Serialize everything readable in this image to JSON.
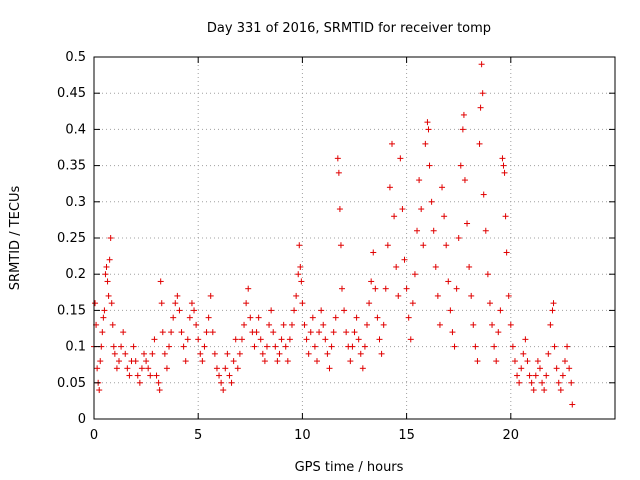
{
  "chart_data": {
    "type": "scatter",
    "title": "Day 331 of 2016, SRMTID for receiver tomp",
    "xlabel": "GPS time / hours",
    "ylabel": "SRMTID / TECUs",
    "xlim": [
      0,
      25
    ],
    "ylim": [
      0,
      0.5
    ],
    "xticks": [
      0,
      5,
      10,
      15,
      20
    ],
    "xtick_labels": [
      "0",
      "5",
      "10",
      "15",
      "20"
    ],
    "yticks": [
      0,
      0.05,
      0.1,
      0.15,
      0.2,
      0.25,
      0.3,
      0.35,
      0.4,
      0.45,
      0.5
    ],
    "ytick_labels": [
      "0",
      "0.05",
      "0.1",
      "0.15",
      "0.2",
      "0.25",
      "0.3",
      "0.35",
      "0.4",
      "0.45",
      "0.5"
    ],
    "grid": true,
    "marker": "+",
    "color": "#e00000",
    "series": [
      {
        "name": "SRMTID",
        "points": [
          [
            0.0,
            0.1
          ],
          [
            0.05,
            0.16
          ],
          [
            0.1,
            0.13
          ],
          [
            0.15,
            0.07
          ],
          [
            0.2,
            0.05
          ],
          [
            0.25,
            0.04
          ],
          [
            0.3,
            0.08
          ],
          [
            0.35,
            0.1
          ],
          [
            0.4,
            0.12
          ],
          [
            0.45,
            0.14
          ],
          [
            0.5,
            0.15
          ],
          [
            0.55,
            0.2
          ],
          [
            0.6,
            0.21
          ],
          [
            0.65,
            0.19
          ],
          [
            0.7,
            0.17
          ],
          [
            0.75,
            0.22
          ],
          [
            0.8,
            0.25
          ],
          [
            0.85,
            0.16
          ],
          [
            0.9,
            0.13
          ],
          [
            0.95,
            0.1
          ],
          [
            1.0,
            0.09
          ],
          [
            1.1,
            0.07
          ],
          [
            1.2,
            0.08
          ],
          [
            1.3,
            0.1
          ],
          [
            1.4,
            0.12
          ],
          [
            1.5,
            0.09
          ],
          [
            1.6,
            0.07
          ],
          [
            1.7,
            0.06
          ],
          [
            1.8,
            0.08
          ],
          [
            1.9,
            0.1
          ],
          [
            2.0,
            0.08
          ],
          [
            2.1,
            0.06
          ],
          [
            2.2,
            0.05
          ],
          [
            2.3,
            0.07
          ],
          [
            2.4,
            0.09
          ],
          [
            2.5,
            0.08
          ],
          [
            2.6,
            0.07
          ],
          [
            2.7,
            0.06
          ],
          [
            2.8,
            0.09
          ],
          [
            2.9,
            0.11
          ],
          [
            3.0,
            0.06
          ],
          [
            3.1,
            0.05
          ],
          [
            3.15,
            0.04
          ],
          [
            3.2,
            0.19
          ],
          [
            3.25,
            0.16
          ],
          [
            3.3,
            0.12
          ],
          [
            3.4,
            0.09
          ],
          [
            3.5,
            0.07
          ],
          [
            3.6,
            0.1
          ],
          [
            3.7,
            0.12
          ],
          [
            3.8,
            0.14
          ],
          [
            3.9,
            0.16
          ],
          [
            4.0,
            0.17
          ],
          [
            4.1,
            0.15
          ],
          [
            4.2,
            0.12
          ],
          [
            4.3,
            0.1
          ],
          [
            4.4,
            0.08
          ],
          [
            4.5,
            0.11
          ],
          [
            4.6,
            0.14
          ],
          [
            4.7,
            0.16
          ],
          [
            4.8,
            0.15
          ],
          [
            4.9,
            0.13
          ],
          [
            5.0,
            0.11
          ],
          [
            5.1,
            0.09
          ],
          [
            5.2,
            0.08
          ],
          [
            5.3,
            0.1
          ],
          [
            5.4,
            0.12
          ],
          [
            5.5,
            0.14
          ],
          [
            5.6,
            0.17
          ],
          [
            5.7,
            0.12
          ],
          [
            5.8,
            0.09
          ],
          [
            5.9,
            0.07
          ],
          [
            6.0,
            0.06
          ],
          [
            6.1,
            0.05
          ],
          [
            6.2,
            0.04
          ],
          [
            6.3,
            0.07
          ],
          [
            6.4,
            0.09
          ],
          [
            6.5,
            0.06
          ],
          [
            6.6,
            0.05
          ],
          [
            6.7,
            0.08
          ],
          [
            6.8,
            0.11
          ],
          [
            6.9,
            0.07
          ],
          [
            7.0,
            0.09
          ],
          [
            7.1,
            0.11
          ],
          [
            7.2,
            0.13
          ],
          [
            7.3,
            0.16
          ],
          [
            7.4,
            0.18
          ],
          [
            7.5,
            0.14
          ],
          [
            7.6,
            0.12
          ],
          [
            7.7,
            0.1
          ],
          [
            7.8,
            0.12
          ],
          [
            7.9,
            0.14
          ],
          [
            8.0,
            0.11
          ],
          [
            8.1,
            0.09
          ],
          [
            8.2,
            0.08
          ],
          [
            8.3,
            0.1
          ],
          [
            8.4,
            0.13
          ],
          [
            8.5,
            0.15
          ],
          [
            8.6,
            0.12
          ],
          [
            8.7,
            0.1
          ],
          [
            8.8,
            0.08
          ],
          [
            8.9,
            0.09
          ],
          [
            9.0,
            0.11
          ],
          [
            9.1,
            0.13
          ],
          [
            9.2,
            0.1
          ],
          [
            9.3,
            0.08
          ],
          [
            9.4,
            0.11
          ],
          [
            9.5,
            0.13
          ],
          [
            9.6,
            0.15
          ],
          [
            9.7,
            0.17
          ],
          [
            9.8,
            0.2
          ],
          [
            9.85,
            0.24
          ],
          [
            9.9,
            0.21
          ],
          [
            9.95,
            0.19
          ],
          [
            10.0,
            0.16
          ],
          [
            10.1,
            0.13
          ],
          [
            10.2,
            0.11
          ],
          [
            10.3,
            0.09
          ],
          [
            10.4,
            0.12
          ],
          [
            10.5,
            0.14
          ],
          [
            10.6,
            0.1
          ],
          [
            10.7,
            0.08
          ],
          [
            10.8,
            0.12
          ],
          [
            10.9,
            0.15
          ],
          [
            11.0,
            0.13
          ],
          [
            11.1,
            0.11
          ],
          [
            11.2,
            0.09
          ],
          [
            11.3,
            0.07
          ],
          [
            11.4,
            0.1
          ],
          [
            11.5,
            0.12
          ],
          [
            11.6,
            0.14
          ],
          [
            11.7,
            0.36
          ],
          [
            11.75,
            0.34
          ],
          [
            11.8,
            0.29
          ],
          [
            11.85,
            0.24
          ],
          [
            11.9,
            0.18
          ],
          [
            12.0,
            0.15
          ],
          [
            12.1,
            0.12
          ],
          [
            12.2,
            0.1
          ],
          [
            12.3,
            0.08
          ],
          [
            12.4,
            0.1
          ],
          [
            12.5,
            0.12
          ],
          [
            12.6,
            0.14
          ],
          [
            12.7,
            0.11
          ],
          [
            12.8,
            0.09
          ],
          [
            12.9,
            0.07
          ],
          [
            13.0,
            0.1
          ],
          [
            13.1,
            0.13
          ],
          [
            13.2,
            0.16
          ],
          [
            13.3,
            0.19
          ],
          [
            13.4,
            0.23
          ],
          [
            13.5,
            0.18
          ],
          [
            13.6,
            0.14
          ],
          [
            13.7,
            0.11
          ],
          [
            13.8,
            0.09
          ],
          [
            13.9,
            0.13
          ],
          [
            14.0,
            0.18
          ],
          [
            14.1,
            0.24
          ],
          [
            14.2,
            0.32
          ],
          [
            14.3,
            0.38
          ],
          [
            14.4,
            0.28
          ],
          [
            14.5,
            0.21
          ],
          [
            14.6,
            0.17
          ],
          [
            14.7,
            0.36
          ],
          [
            14.8,
            0.29
          ],
          [
            14.9,
            0.22
          ],
          [
            15.0,
            0.18
          ],
          [
            15.1,
            0.14
          ],
          [
            15.2,
            0.11
          ],
          [
            15.3,
            0.16
          ],
          [
            15.4,
            0.2
          ],
          [
            15.5,
            0.26
          ],
          [
            15.6,
            0.33
          ],
          [
            15.7,
            0.29
          ],
          [
            15.8,
            0.24
          ],
          [
            15.9,
            0.38
          ],
          [
            16.0,
            0.41
          ],
          [
            16.05,
            0.4
          ],
          [
            16.1,
            0.35
          ],
          [
            16.2,
            0.3
          ],
          [
            16.3,
            0.26
          ],
          [
            16.4,
            0.21
          ],
          [
            16.5,
            0.17
          ],
          [
            16.6,
            0.13
          ],
          [
            16.7,
            0.32
          ],
          [
            16.8,
            0.28
          ],
          [
            16.9,
            0.24
          ],
          [
            17.0,
            0.19
          ],
          [
            17.1,
            0.15
          ],
          [
            17.2,
            0.12
          ],
          [
            17.3,
            0.1
          ],
          [
            17.4,
            0.18
          ],
          [
            17.5,
            0.25
          ],
          [
            17.6,
            0.35
          ],
          [
            17.7,
            0.4
          ],
          [
            17.75,
            0.42
          ],
          [
            17.8,
            0.33
          ],
          [
            17.9,
            0.27
          ],
          [
            18.0,
            0.21
          ],
          [
            18.1,
            0.17
          ],
          [
            18.2,
            0.13
          ],
          [
            18.3,
            0.1
          ],
          [
            18.4,
            0.08
          ],
          [
            18.5,
            0.38
          ],
          [
            18.55,
            0.43
          ],
          [
            18.6,
            0.49
          ],
          [
            18.65,
            0.45
          ],
          [
            18.7,
            0.31
          ],
          [
            18.8,
            0.26
          ],
          [
            18.9,
            0.2
          ],
          [
            19.0,
            0.16
          ],
          [
            19.1,
            0.13
          ],
          [
            19.2,
            0.1
          ],
          [
            19.3,
            0.08
          ],
          [
            19.4,
            0.12
          ],
          [
            19.5,
            0.15
          ],
          [
            19.6,
            0.36
          ],
          [
            19.65,
            0.35
          ],
          [
            19.7,
            0.34
          ],
          [
            19.75,
            0.28
          ],
          [
            19.8,
            0.23
          ],
          [
            19.9,
            0.17
          ],
          [
            20.0,
            0.13
          ],
          [
            20.1,
            0.1
          ],
          [
            20.2,
            0.08
          ],
          [
            20.3,
            0.06
          ],
          [
            20.4,
            0.05
          ],
          [
            20.5,
            0.07
          ],
          [
            20.6,
            0.09
          ],
          [
            20.7,
            0.11
          ],
          [
            20.8,
            0.08
          ],
          [
            20.9,
            0.06
          ],
          [
            21.0,
            0.05
          ],
          [
            21.1,
            0.04
          ],
          [
            21.2,
            0.06
          ],
          [
            21.3,
            0.08
          ],
          [
            21.4,
            0.07
          ],
          [
            21.5,
            0.05
          ],
          [
            21.6,
            0.04
          ],
          [
            21.7,
            0.06
          ],
          [
            21.8,
            0.09
          ],
          [
            21.9,
            0.13
          ],
          [
            22.0,
            0.15
          ],
          [
            22.05,
            0.16
          ],
          [
            22.1,
            0.1
          ],
          [
            22.2,
            0.07
          ],
          [
            22.3,
            0.05
          ],
          [
            22.4,
            0.04
          ],
          [
            22.5,
            0.06
          ],
          [
            22.6,
            0.08
          ],
          [
            22.7,
            0.1
          ],
          [
            22.8,
            0.07
          ],
          [
            22.9,
            0.05
          ],
          [
            22.95,
            0.02
          ]
        ]
      }
    ]
  }
}
